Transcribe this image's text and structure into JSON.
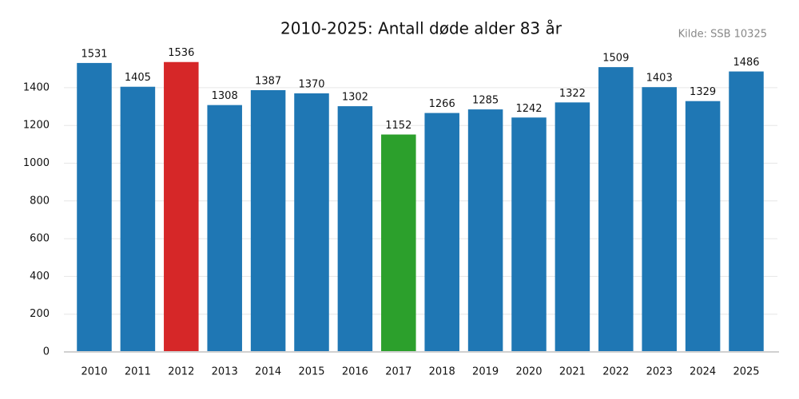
{
  "chart_data": {
    "type": "bar",
    "title": "2010-2025: Antall døde alder 83 år",
    "source": "Kilde: SSB 10325",
    "categories": [
      "2010",
      "2011",
      "2012",
      "2013",
      "2014",
      "2015",
      "2016",
      "2017",
      "2018",
      "2019",
      "2020",
      "2021",
      "2022",
      "2023",
      "2024",
      "2025"
    ],
    "values": [
      1531,
      1405,
      1536,
      1308,
      1387,
      1370,
      1302,
      1152,
      1266,
      1285,
      1242,
      1322,
      1509,
      1403,
      1329,
      1486
    ],
    "colors": [
      "#1f77b4",
      "#1f77b4",
      "#d62728",
      "#1f77b4",
      "#1f77b4",
      "#1f77b4",
      "#1f77b4",
      "#2ca02c",
      "#1f77b4",
      "#1f77b4",
      "#1f77b4",
      "#1f77b4",
      "#1f77b4",
      "#1f77b4",
      "#1f77b4",
      "#1f77b4"
    ],
    "ylim": [
      0,
      1600
    ],
    "yticks": [
      0,
      200,
      400,
      600,
      800,
      1000,
      1200,
      1400
    ],
    "grid": true
  }
}
